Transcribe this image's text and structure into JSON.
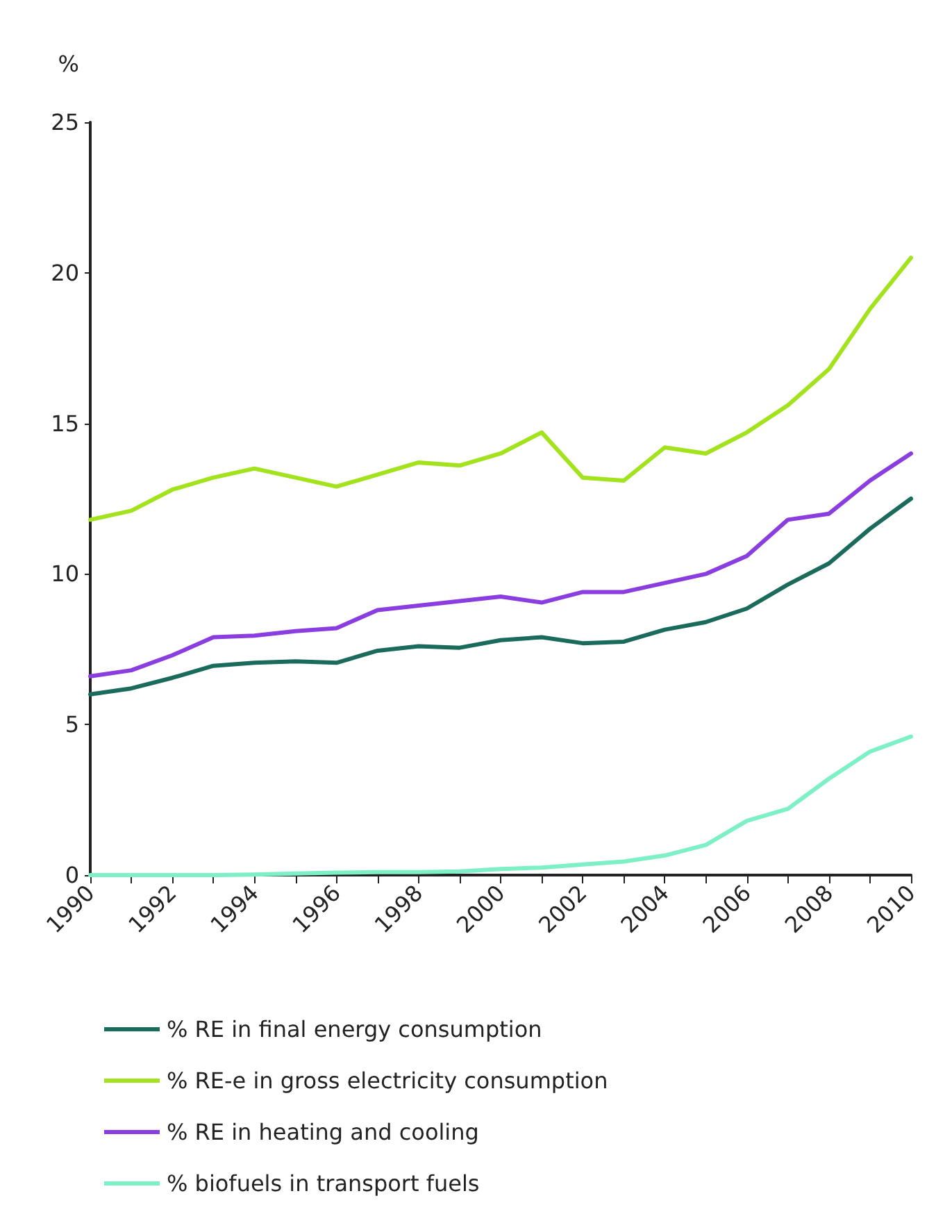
{
  "chart_data": {
    "type": "line",
    "ylabel": "%",
    "categories": [
      "1990",
      null,
      "1992",
      null,
      "1994",
      null,
      "1996",
      null,
      "1998",
      null,
      "2000",
      null,
      "2002",
      null,
      "2004",
      null,
      "2006",
      null,
      "2008",
      null,
      "2010"
    ],
    "series": [
      {
        "name": "% RE in final energy consumption",
        "color": "#1b6b5c",
        "values": [
          6.0,
          6.2,
          6.55,
          6.95,
          7.05,
          7.1,
          7.05,
          7.45,
          7.6,
          7.55,
          7.8,
          7.9,
          7.7,
          7.75,
          8.15,
          8.4,
          8.85,
          9.65,
          10.35,
          11.5,
          12.5
        ]
      },
      {
        "name": "% RE-e in gross electricity consumption",
        "color": "#a3e31e",
        "values": [
          11.8,
          12.1,
          12.8,
          13.2,
          13.5,
          13.2,
          12.9,
          13.3,
          13.7,
          13.6,
          14.0,
          14.7,
          13.2,
          13.1,
          14.2,
          14.0,
          14.7,
          15.6,
          16.8,
          18.8,
          20.5
        ]
      },
      {
        "name": "% RE in heating and cooling",
        "color": "#8a3ee0",
        "values": [
          6.6,
          6.8,
          7.3,
          7.9,
          7.95,
          8.1,
          8.2,
          8.8,
          8.95,
          9.1,
          9.25,
          9.05,
          9.4,
          9.4,
          9.7,
          10.0,
          10.6,
          11.8,
          12.0,
          13.1,
          14.0
        ]
      },
      {
        "name": "% biofuels in transport fuels",
        "color": "#7ef0c6",
        "values": [
          0,
          0,
          0,
          0,
          0.02,
          0.05,
          0.08,
          0.1,
          0.1,
          0.12,
          0.2,
          0.25,
          0.35,
          0.45,
          0.65,
          1.0,
          1.8,
          2.2,
          3.2,
          4.1,
          4.6
        ]
      }
    ],
    "ylim": [
      0,
      25
    ],
    "yticks": [
      0,
      5,
      10,
      15,
      20,
      25
    ],
    "grid": false,
    "legend": "bottom",
    "marker": "none",
    "line_style": "solid"
  }
}
